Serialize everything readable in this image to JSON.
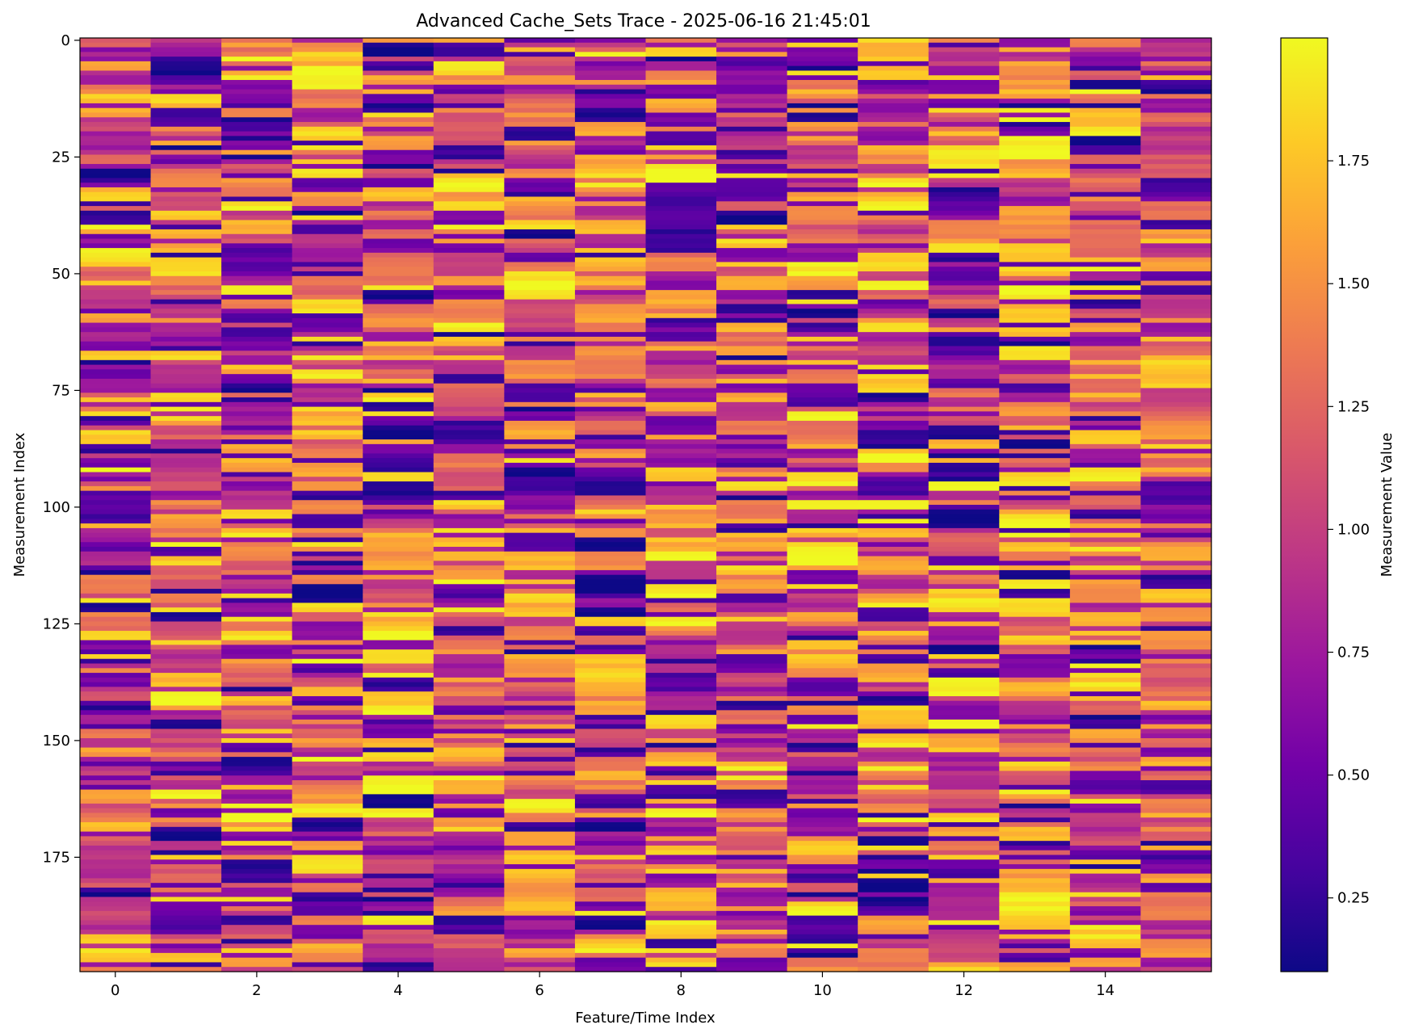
{
  "chart_data": {
    "type": "heatmap",
    "title": "Advanced Cache_Sets Trace - 2025-06-16 21:45:01",
    "xlabel": "Feature/Time Index",
    "ylabel": "Measurement Index",
    "colorbar_label": "Measurement Value",
    "colormap": "plasma",
    "colormap_stops": [
      "#0d0887",
      "#46039f",
      "#7201a8",
      "#9c179e",
      "#bd3786",
      "#d8576b",
      "#ed7953",
      "#fb9f3a",
      "#fdca26",
      "#f0f921"
    ],
    "n_columns": 16,
    "n_rows": 200,
    "value_range": [
      0.1,
      2.0
    ],
    "grid": false,
    "legend": "colorbar-right",
    "x_ticks": [
      "0",
      "2",
      "4",
      "6",
      "8",
      "10",
      "12",
      "14"
    ],
    "x_tick_values": [
      0,
      2,
      4,
      6,
      8,
      10,
      12,
      14
    ],
    "y_ticks": [
      "0",
      "25",
      "50",
      "75",
      "100",
      "125",
      "150",
      "175"
    ],
    "y_tick_values": [
      0,
      25,
      50,
      75,
      100,
      125,
      150,
      175
    ],
    "colorbar_ticks": [
      "0.25",
      "0.50",
      "0.75",
      "1.00",
      "1.25",
      "1.50",
      "1.75"
    ],
    "colorbar_tick_values": [
      0.25,
      0.5,
      0.75,
      1.0,
      1.25,
      1.5,
      1.75
    ],
    "values_note": "Individual cell values are not legible at this resolution; cells vary across the full range 0.1–2.0."
  }
}
